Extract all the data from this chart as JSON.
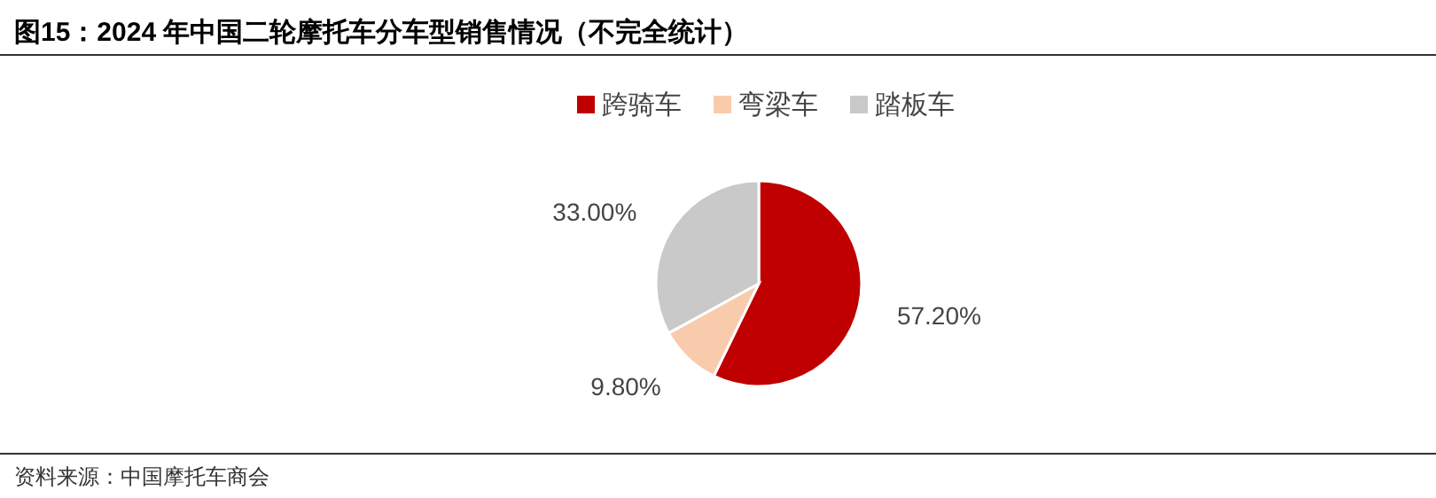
{
  "chart_data": {
    "type": "pie",
    "title": "图15：2024 年中国二轮摩托车分车型销售情况（不完全统计）",
    "categories": [
      "跨骑车",
      "弯梁车",
      "踏板车"
    ],
    "values": [
      57.2,
      9.8,
      33.0
    ],
    "colors": [
      "#c00000",
      "#f8cbad",
      "#c9c9c9"
    ],
    "value_labels": [
      "57.20%",
      "9.80%",
      "33.00%"
    ],
    "legend": "top",
    "annotations": [
      "资料来源：中国摩托车商会"
    ]
  }
}
